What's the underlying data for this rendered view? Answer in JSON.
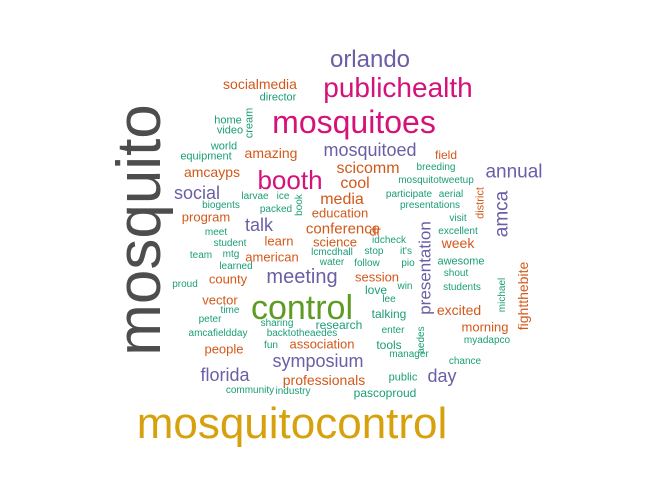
{
  "palette": {
    "gray": "#4d4d4d",
    "gold": "#d6a10c",
    "magenta": "#d4127a",
    "purple": "#6a5fa6",
    "orange": "#d3581a",
    "teal": "#1b9e77",
    "green": "#5e9b24"
  },
  "words": [
    {
      "text": "mosquito",
      "color": "gray"
    },
    {
      "text": "mosquitocontrol",
      "color": "gold"
    },
    {
      "text": "control",
      "color": "green"
    },
    {
      "text": "mosquitoes",
      "color": "magenta"
    },
    {
      "text": "publichealth",
      "color": "magenta"
    },
    {
      "text": "booth",
      "color": "magenta"
    },
    {
      "text": "orlando",
      "color": "purple"
    },
    {
      "text": "meeting",
      "color": "purple"
    },
    {
      "text": "symposium",
      "color": "purple"
    },
    {
      "text": "annual",
      "color": "purple"
    },
    {
      "text": "amca",
      "color": "purple"
    },
    {
      "text": "presentation",
      "color": "purple"
    },
    {
      "text": "florida",
      "color": "purple"
    },
    {
      "text": "day",
      "color": "purple"
    },
    {
      "text": "social",
      "color": "purple"
    },
    {
      "text": "talk",
      "color": "purple"
    },
    {
      "text": "mosquitoed",
      "color": "purple"
    },
    {
      "text": "media",
      "color": "orange"
    },
    {
      "text": "cool",
      "color": "orange"
    },
    {
      "text": "scicomm",
      "color": "orange"
    },
    {
      "text": "conference",
      "color": "orange"
    },
    {
      "text": "fightthebite",
      "color": "orange"
    },
    {
      "text": "professionals",
      "color": "orange"
    },
    {
      "text": "excited",
      "color": "orange"
    },
    {
      "text": "week",
      "color": "orange"
    },
    {
      "text": "amazing",
      "color": "orange"
    },
    {
      "text": "socialmedia",
      "color": "orange"
    },
    {
      "text": "field",
      "color": "orange"
    },
    {
      "text": "amcayps",
      "color": "orange"
    },
    {
      "text": "education",
      "color": "orange"
    },
    {
      "text": "science",
      "color": "orange"
    },
    {
      "text": "learn",
      "color": "orange"
    },
    {
      "text": "dr",
      "color": "orange"
    },
    {
      "text": "program",
      "color": "orange"
    },
    {
      "text": "american",
      "color": "orange"
    },
    {
      "text": "county",
      "color": "orange"
    },
    {
      "text": "session",
      "color": "orange"
    },
    {
      "text": "vector",
      "color": "orange"
    },
    {
      "text": "people",
      "color": "orange"
    },
    {
      "text": "association",
      "color": "orange"
    },
    {
      "text": "morning",
      "color": "orange"
    },
    {
      "text": "district",
      "color": "orange"
    },
    {
      "text": "director",
      "color": "teal"
    },
    {
      "text": "home",
      "color": "teal"
    },
    {
      "text": "video",
      "color": "teal"
    },
    {
      "text": "cream",
      "color": "teal"
    },
    {
      "text": "world",
      "color": "teal"
    },
    {
      "text": "equipment",
      "color": "teal"
    },
    {
      "text": "breeding",
      "color": "teal"
    },
    {
      "text": "mosquitotweetup",
      "color": "teal"
    },
    {
      "text": "larvae",
      "color": "teal"
    },
    {
      "text": "ice",
      "color": "teal"
    },
    {
      "text": "book",
      "color": "teal"
    },
    {
      "text": "participate",
      "color": "teal"
    },
    {
      "text": "aerial",
      "color": "teal"
    },
    {
      "text": "biogents",
      "color": "teal"
    },
    {
      "text": "packed",
      "color": "teal"
    },
    {
      "text": "presentations",
      "color": "teal"
    },
    {
      "text": "visit",
      "color": "teal"
    },
    {
      "text": "excellent",
      "color": "teal"
    },
    {
      "text": "meet",
      "color": "teal"
    },
    {
      "text": "student",
      "color": "teal"
    },
    {
      "text": "idcheck",
      "color": "teal"
    },
    {
      "text": "mtg",
      "color": "teal"
    },
    {
      "text": "lcmcdhall",
      "color": "teal"
    },
    {
      "text": "it's",
      "color": "teal"
    },
    {
      "text": "stop",
      "color": "teal"
    },
    {
      "text": "team",
      "color": "teal"
    },
    {
      "text": "learned",
      "color": "teal"
    },
    {
      "text": "water",
      "color": "teal"
    },
    {
      "text": "follow",
      "color": "teal"
    },
    {
      "text": "pio",
      "color": "teal"
    },
    {
      "text": "awesome",
      "color": "teal"
    },
    {
      "text": "shout",
      "color": "teal"
    },
    {
      "text": "proud",
      "color": "teal"
    },
    {
      "text": "love",
      "color": "teal"
    },
    {
      "text": "win",
      "color": "teal"
    },
    {
      "text": "students",
      "color": "teal"
    },
    {
      "text": "time",
      "color": "teal"
    },
    {
      "text": "lee",
      "color": "teal"
    },
    {
      "text": "michael",
      "color": "teal"
    },
    {
      "text": "peter",
      "color": "teal"
    },
    {
      "text": "sharing",
      "color": "teal"
    },
    {
      "text": "research",
      "color": "teal"
    },
    {
      "text": "talking",
      "color": "teal"
    },
    {
      "text": "amcafieldday",
      "color": "teal"
    },
    {
      "text": "backtotheaedes",
      "color": "teal"
    },
    {
      "text": "enter",
      "color": "teal"
    },
    {
      "text": "aedes",
      "color": "teal"
    },
    {
      "text": "myadapco",
      "color": "teal"
    },
    {
      "text": "fun",
      "color": "teal"
    },
    {
      "text": "tools",
      "color": "teal"
    },
    {
      "text": "manager",
      "color": "teal"
    },
    {
      "text": "chance",
      "color": "teal"
    },
    {
      "text": "public",
      "color": "teal"
    },
    {
      "text": "community",
      "color": "teal"
    },
    {
      "text": "industry",
      "color": "teal"
    },
    {
      "text": "pascoproud",
      "color": "teal"
    }
  ]
}
